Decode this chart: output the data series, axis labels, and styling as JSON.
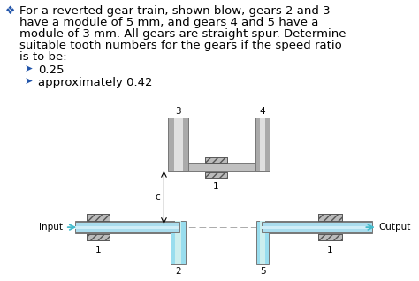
{
  "bg_color": "#ffffff",
  "text_color": "#000000",
  "blue_arrow_color": "#2299bb",
  "bullet_color": "#2255aa",
  "text_fontsize": 9.5,
  "bullet_fontsize": 9.5,
  "label_fontsize": 7.5,
  "bullet1": "0.25",
  "bullet2": "approximately 0.42",
  "input_label": "Input",
  "output_label": "Output",
  "center_label": "c",
  "shaft_blue_light": "#aaddee",
  "shaft_blue_mid": "#88ccdd",
  "shaft_gray_light": "#cccccc",
  "shaft_gray_dark": "#aaaaaa",
  "gear_gray_light": "#c8c8c8",
  "gear_gray_dark": "#888888",
  "hatch_bg": "#bbbbbb",
  "dashed_color": "#888888",
  "arrow_teal": "#44bbcc",
  "inter_shaft_color": "#c0c0c0",
  "gear3_color": "#aaaaaa",
  "gear4_color": "#aaaaaa",
  "gear2_color": "#99ddee",
  "gear5_color": "#99ddee",
  "main_shaft_color": "#aaddee",
  "edge_color": "#777777"
}
